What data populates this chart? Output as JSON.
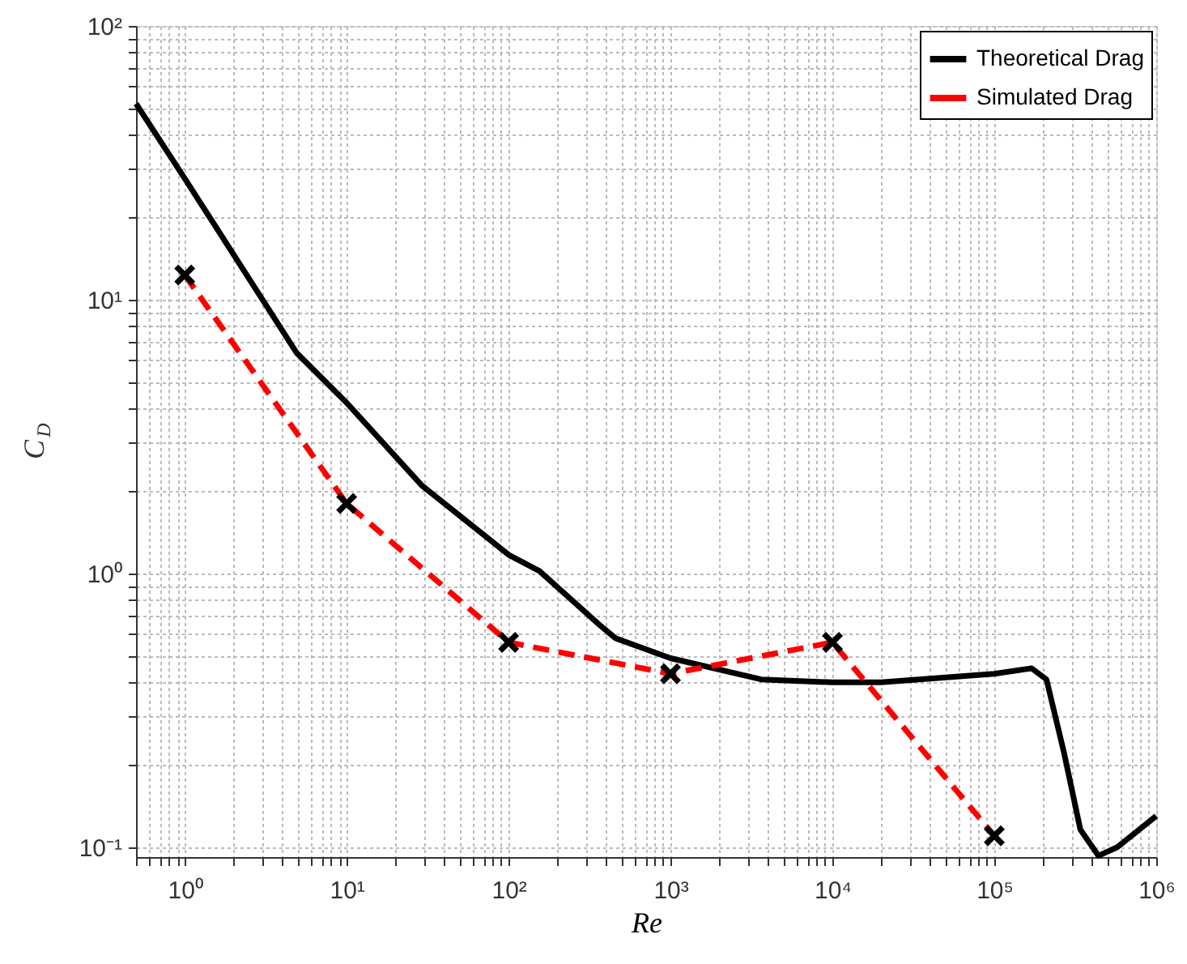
{
  "chart_data": {
    "type": "line",
    "xlabel": "Re",
    "ylabel": "C$_{D}$",
    "log": "xy",
    "grid": true,
    "legend": "top right",
    "xlim": [
      0.5,
      1000000
    ],
    "ylim": [
      0.092,
      100
    ],
    "xticks": [
      {
        "value": 0.5,
        "label": null
      },
      {
        "value": 0.6,
        "label": null
      },
      {
        "value": 0.7,
        "label": null
      },
      {
        "value": 0.8,
        "label": null
      },
      {
        "value": 0.9,
        "label": null
      },
      {
        "value": 1,
        "label": "10⁰"
      },
      {
        "value": 2,
        "label": null
      },
      {
        "value": 3,
        "label": null
      },
      {
        "value": 4,
        "label": null
      },
      {
        "value": 5,
        "label": null
      },
      {
        "value": 6,
        "label": null
      },
      {
        "value": 7,
        "label": null
      },
      {
        "value": 8,
        "label": null
      },
      {
        "value": 9,
        "label": null
      },
      {
        "value": 10,
        "label": "10¹"
      },
      {
        "value": 20,
        "label": null
      },
      {
        "value": 30,
        "label": null
      },
      {
        "value": 40,
        "label": null
      },
      {
        "value": 50,
        "label": null
      },
      {
        "value": 60,
        "label": null
      },
      {
        "value": 70,
        "label": null
      },
      {
        "value": 80,
        "label": null
      },
      {
        "value": 90,
        "label": null
      },
      {
        "value": 100,
        "label": "10²"
      },
      {
        "value": 200,
        "label": null
      },
      {
        "value": 300,
        "label": null
      },
      {
        "value": 400,
        "label": null
      },
      {
        "value": 500,
        "label": null
      },
      {
        "value": 600,
        "label": null
      },
      {
        "value": 700,
        "label": null
      },
      {
        "value": 800,
        "label": null
      },
      {
        "value": 900,
        "label": null
      },
      {
        "value": 1000,
        "label": "10³"
      },
      {
        "value": 2000,
        "label": null
      },
      {
        "value": 3000,
        "label": null
      },
      {
        "value": 4000,
        "label": null
      },
      {
        "value": 5000,
        "label": null
      },
      {
        "value": 6000,
        "label": null
      },
      {
        "value": 7000,
        "label": null
      },
      {
        "value": 8000,
        "label": null
      },
      {
        "value": 9000,
        "label": null
      },
      {
        "value": 10000,
        "label": "10⁴"
      },
      {
        "value": 20000,
        "label": null
      },
      {
        "value": 30000,
        "label": null
      },
      {
        "value": 40000,
        "label": null
      },
      {
        "value": 50000,
        "label": null
      },
      {
        "value": 60000,
        "label": null
      },
      {
        "value": 70000,
        "label": null
      },
      {
        "value": 80000,
        "label": null
      },
      {
        "value": 90000,
        "label": null
      },
      {
        "value": 100000,
        "label": "10⁵"
      },
      {
        "value": 200000,
        "label": null
      },
      {
        "value": 300000,
        "label": null
      },
      {
        "value": 400000,
        "label": null
      },
      {
        "value": 500000,
        "label": null
      },
      {
        "value": 600000,
        "label": null
      },
      {
        "value": 700000,
        "label": null
      },
      {
        "value": 800000,
        "label": null
      },
      {
        "value": 900000,
        "label": null
      },
      {
        "value": 1000000,
        "label": "10⁶"
      }
    ],
    "yticks": [
      {
        "value": 0.1,
        "label": "10⁻¹"
      },
      {
        "value": 0.2,
        "label": null
      },
      {
        "value": 0.3,
        "label": null
      },
      {
        "value": 0.4,
        "label": null
      },
      {
        "value": 0.5,
        "label": null
      },
      {
        "value": 0.6,
        "label": null
      },
      {
        "value": 0.7,
        "label": null
      },
      {
        "value": 0.8,
        "label": null
      },
      {
        "value": 0.9,
        "label": null
      },
      {
        "value": 1,
        "label": "10⁰"
      },
      {
        "value": 2,
        "label": null
      },
      {
        "value": 3,
        "label": null
      },
      {
        "value": 4,
        "label": null
      },
      {
        "value": 5,
        "label": null
      },
      {
        "value": 6,
        "label": null
      },
      {
        "value": 7,
        "label": null
      },
      {
        "value": 8,
        "label": null
      },
      {
        "value": 9,
        "label": null
      },
      {
        "value": 10,
        "label": "10¹"
      },
      {
        "value": 20,
        "label": null
      },
      {
        "value": 30,
        "label": null
      },
      {
        "value": 40,
        "label": null
      },
      {
        "value": 50,
        "label": null
      },
      {
        "value": 60,
        "label": null
      },
      {
        "value": 70,
        "label": null
      },
      {
        "value": 80,
        "label": null
      },
      {
        "value": 90,
        "label": null
      },
      {
        "value": 100,
        "label": "10²"
      }
    ],
    "series": [
      {
        "name": "Theoretical Drag",
        "color": "#000000",
        "line_style": "solid",
        "marker": "none",
        "x": [
          0.5,
          1,
          4.9,
          10,
          29,
          100,
          155,
          363,
          457,
          1000,
          3630,
          10000,
          20000,
          100000,
          170000,
          210000,
          270000,
          340000,
          440000,
          575000,
          1000000
        ],
        "values": [
          52,
          27.7,
          6.4,
          4.2,
          2.1,
          1.17,
          1.02,
          0.65,
          0.58,
          0.49,
          0.41,
          0.4,
          0.4,
          0.43,
          0.45,
          0.41,
          0.22,
          0.116,
          0.093,
          0.1,
          0.13
        ]
      },
      {
        "name": "Simulated Drag",
        "color": "#ff0000",
        "line_style": "dashed",
        "marker": "cross",
        "x": [
          1,
          10,
          100,
          1000,
          10000,
          100000
        ],
        "values": [
          12.3,
          1.8,
          0.56,
          0.43,
          0.56,
          0.11
        ]
      }
    ]
  }
}
